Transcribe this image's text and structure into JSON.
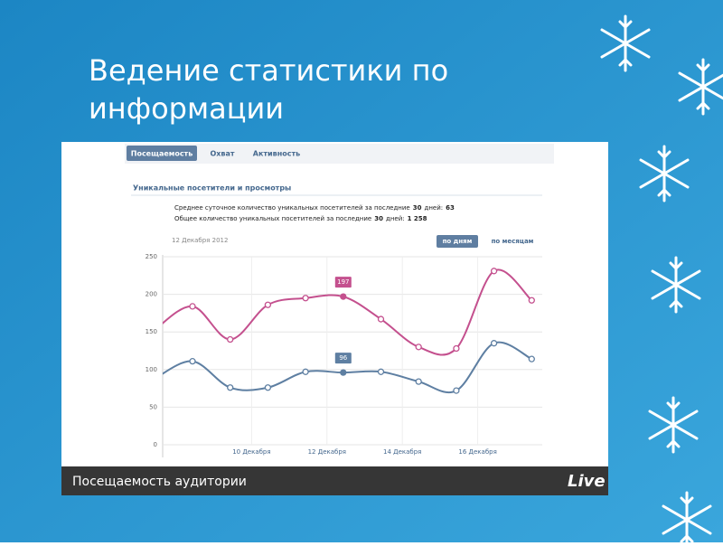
{
  "slide": {
    "title_lines": [
      "Ведение статистики по",
      "информации"
    ]
  },
  "tabs": [
    "Посещаемость",
    "Охват",
    "Активность"
  ],
  "section_title": "Уникальные посетители и просмотры",
  "stats": [
    {
      "text": "Среднее суточное количество уникальных посетителей за последние",
      "days": "30",
      "suffix": "дней:",
      "value": "63"
    },
    {
      "text": "Общее количество уникальных посетителей за последние",
      "days": "30",
      "suffix": "дней:",
      "value": "1 258"
    }
  ],
  "date": "12 Декабря 2012",
  "period_buttons": [
    "по дням",
    "по месяцам"
  ],
  "footer": {
    "caption": "Посещаемость аудитории",
    "logo": "Live"
  },
  "chart_data": {
    "type": "line",
    "categories": [
      null,
      null,
      null,
      "10 Декабря",
      null,
      "12 Декабря",
      null,
      "14 Декабря",
      null,
      "16 Декабря",
      null
    ],
    "series": [
      {
        "color": "#c4508e",
        "values": [
          153,
          184,
          140,
          186,
          195,
          197,
          167,
          130,
          128,
          231,
          192
        ]
      },
      {
        "color": "#5e7fa2",
        "values": [
          88,
          111,
          76,
          76,
          97,
          96,
          97,
          84,
          72,
          135,
          114
        ]
      }
    ],
    "highlight_index": 5,
    "ylim": [
      0,
      250
    ],
    "yticks": [
      0,
      50,
      100,
      150,
      200,
      250
    ],
    "grid": true
  }
}
